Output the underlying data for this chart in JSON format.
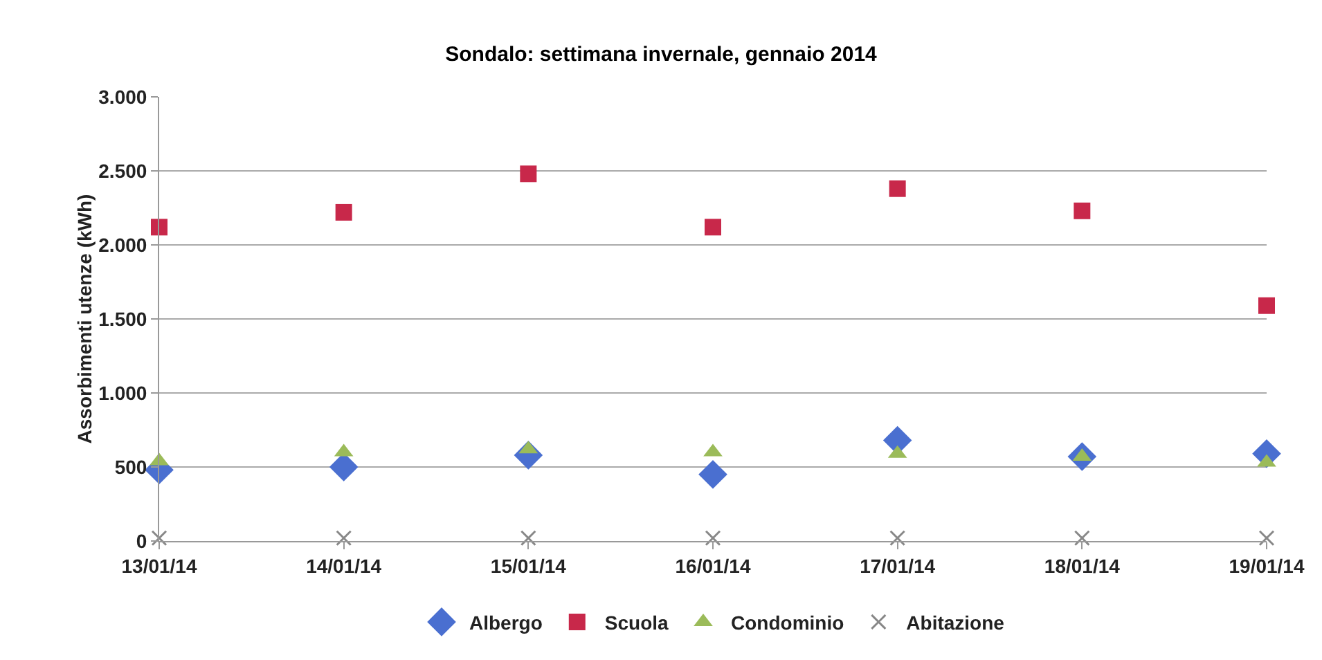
{
  "chart_data": {
    "type": "scatter",
    "title": "Sondalo: settimana invernale, gennaio 2014",
    "ylabel": "Assorbimenti utenze (kWh)",
    "categories": [
      "13/01/14",
      "14/01/14",
      "15/01/14",
      "16/01/14",
      "17/01/14",
      "18/01/14",
      "19/01/14"
    ],
    "ylim": [
      0,
      3000
    ],
    "yticks": [
      {
        "value": 0,
        "label": "0"
      },
      {
        "value": 500,
        "label": "500"
      },
      {
        "value": 1000,
        "label": "1.000"
      },
      {
        "value": 1500,
        "label": "1.500"
      },
      {
        "value": 2000,
        "label": "2.000"
      },
      {
        "value": 2500,
        "label": "2.500"
      },
      {
        "value": 3000,
        "label": "3.000"
      }
    ],
    "grid": "y",
    "legend": "bottom",
    "series": [
      {
        "name": "Albergo",
        "color": "#4a6fd0",
        "marker": "diamond",
        "values": [
          480,
          500,
          580,
          450,
          680,
          570,
          590
        ]
      },
      {
        "name": "Scuola",
        "color": "#c8284a",
        "marker": "square",
        "values": [
          2120,
          2220,
          2480,
          2120,
          2380,
          2230,
          1590
        ]
      },
      {
        "name": "Condominio",
        "color": "#9bbb59",
        "marker": "triangle",
        "values": [
          540,
          600,
          620,
          600,
          590,
          570,
          530
        ]
      },
      {
        "name": "Abitazione",
        "color": "#888888",
        "marker": "cross",
        "values": [
          20,
          20,
          20,
          20,
          20,
          20,
          20
        ]
      }
    ]
  }
}
